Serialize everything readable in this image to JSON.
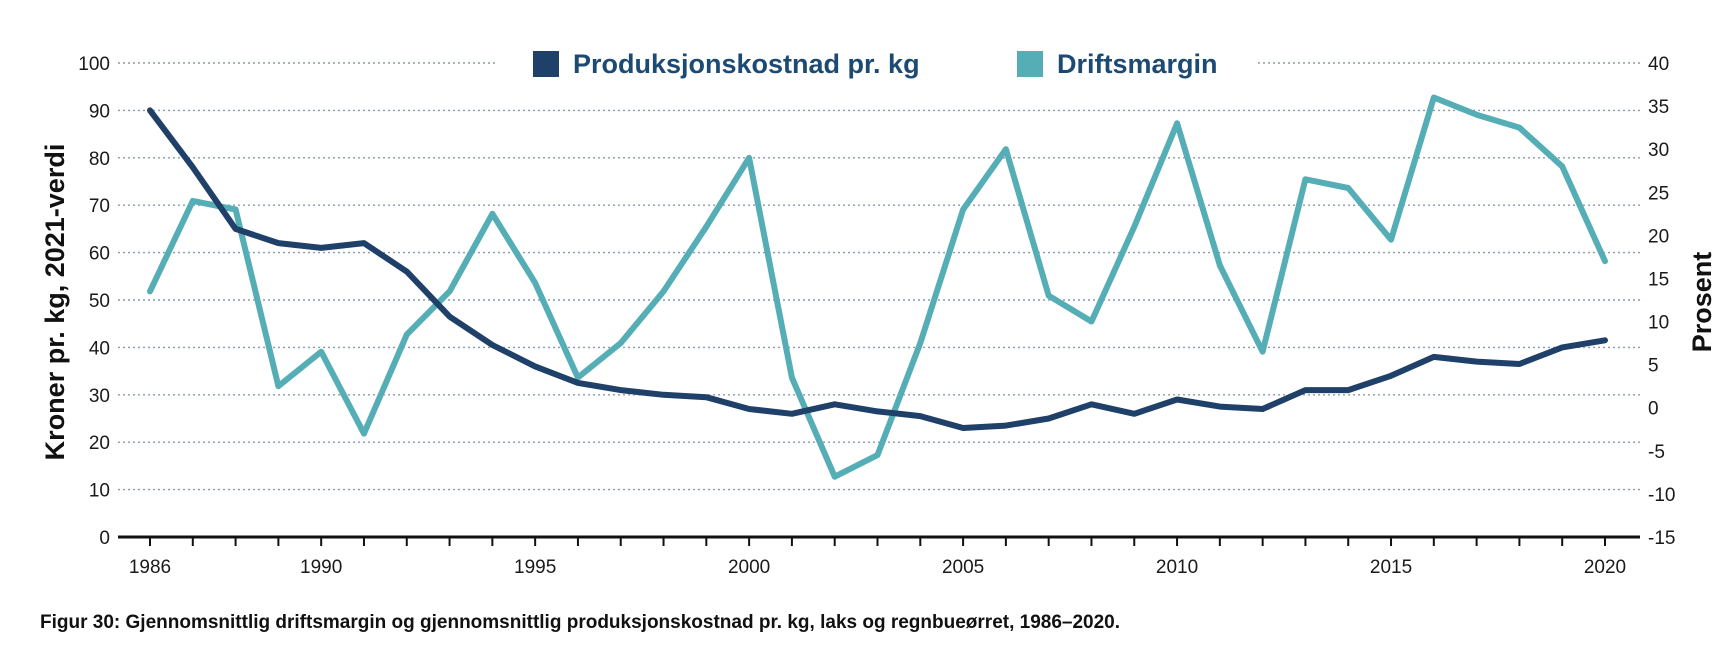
{
  "caption": "Figur 30: Gjennomsnittlig driftsmargin og gjennomsnittlig produksjonskostnad pr. kg, laks og regnbueørret, 1986–2020.",
  "colors": {
    "produksjonskostnad": "#1f4068",
    "driftsmargin": "#55aeb5",
    "grid": "#8a9aab",
    "axis": "#111111"
  },
  "chart_data": {
    "type": "line",
    "title": "",
    "xlabel": "",
    "ylabel": "Kroner pr. kg, 2021-verdi",
    "y2label": "Prosent",
    "xlim": [
      1986,
      2020
    ],
    "ylim": [
      0,
      100
    ],
    "y2lim": [
      -15,
      40
    ],
    "xticks": [
      "1986",
      "1990",
      "1995",
      "2000",
      "2005",
      "2010",
      "2015",
      "2020"
    ],
    "yticks": [
      "0",
      "10",
      "20",
      "30",
      "40",
      "50",
      "60",
      "70",
      "80",
      "90",
      "100"
    ],
    "y2ticks": [
      "-15",
      "-10",
      "-5",
      "0",
      "5",
      "10",
      "15",
      "20",
      "25",
      "30",
      "35",
      "40"
    ],
    "grid": true,
    "legend_position": "top",
    "x": [
      1986,
      1987,
      1988,
      1989,
      1990,
      1991,
      1992,
      1993,
      1994,
      1995,
      1996,
      1997,
      1998,
      1999,
      2000,
      2001,
      2002,
      2003,
      2004,
      2005,
      2006,
      2007,
      2008,
      2009,
      2010,
      2011,
      2012,
      2013,
      2014,
      2015,
      2016,
      2017,
      2018,
      2019,
      2020
    ],
    "series": [
      {
        "name": "Produksjonskostnad pr. kg",
        "axis": "left",
        "values": [
          90,
          78,
          65,
          62,
          61,
          62,
          56,
          46.5,
          40.5,
          36,
          32.5,
          31,
          30,
          29.5,
          27,
          26,
          28,
          26.5,
          25.5,
          23,
          23.5,
          25,
          28,
          26,
          29,
          27.5,
          27,
          31,
          31,
          34,
          38,
          37,
          36.5,
          40,
          41.5
        ]
      },
      {
        "name": "Driftsmargin",
        "axis": "right",
        "values": [
          13.5,
          24,
          23,
          2.5,
          6.5,
          -3,
          8.5,
          13.5,
          22.5,
          14.5,
          3.5,
          7.5,
          13.5,
          21,
          29,
          3.5,
          -8,
          -5.5,
          7.5,
          23,
          30,
          13,
          10,
          21,
          33,
          16.5,
          6.5,
          26.5,
          25.5,
          19.5,
          36,
          34,
          32.5,
          28,
          17
        ]
      }
    ]
  }
}
